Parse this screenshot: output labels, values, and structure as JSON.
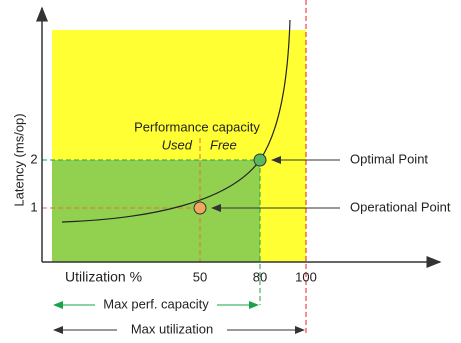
{
  "axes": {
    "y_label": "Latency (ms/op)",
    "x_label": "Utilization %",
    "y_ticks": [
      "1",
      "2"
    ],
    "x_ticks": [
      "50",
      "80",
      "100"
    ]
  },
  "annotations": {
    "performance_capacity": "Performance capacity",
    "used": "Used",
    "free": "Free",
    "optimal_point": "Optimal Point",
    "operational_point": "Operational Point",
    "max_perf_capacity": "Max perf. capacity",
    "max_utilization": "Max utilization"
  }
}
